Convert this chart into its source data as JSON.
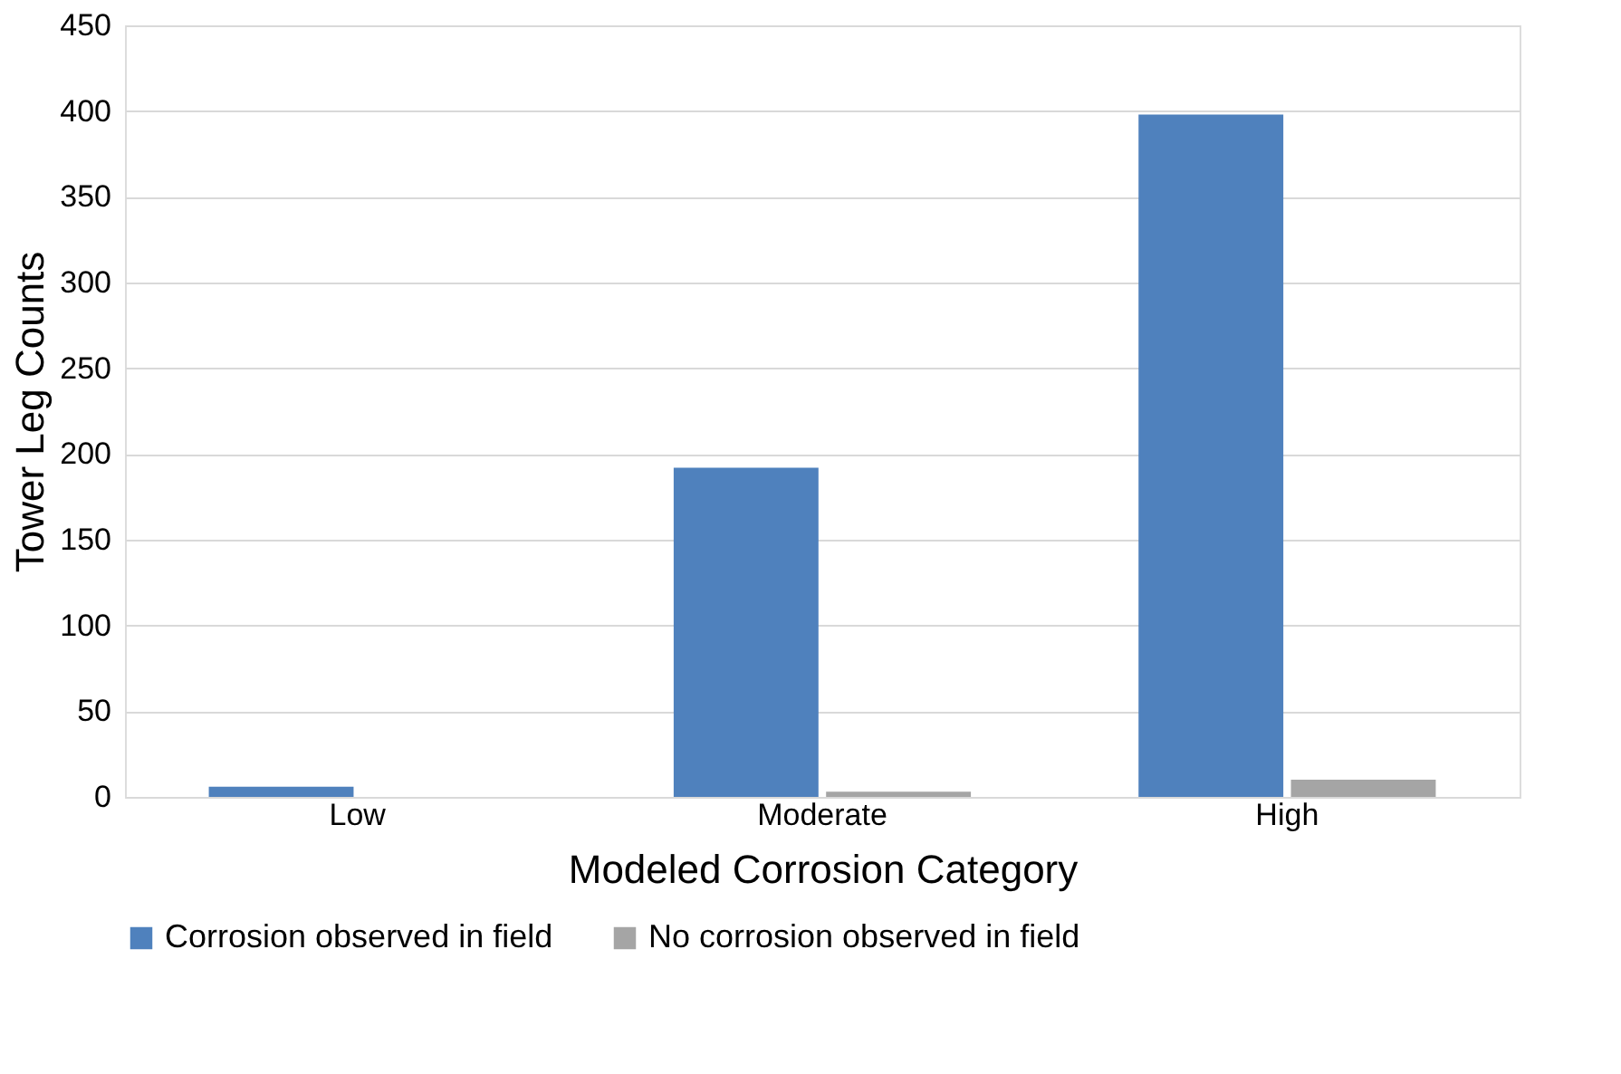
{
  "chart_data": {
    "type": "bar",
    "xlabel": "Modeled Corrosion Category",
    "ylabel": "Tower Leg Counts",
    "categories": [
      "Low",
      "Moderate",
      "High"
    ],
    "series": [
      {
        "name": "Corrosion observed in field",
        "color": "#4f81bd",
        "values": [
          6,
          192,
          398
        ]
      },
      {
        "name": "No corrosion observed in field",
        "color": "#a5a5a5",
        "values": [
          0,
          3,
          10
        ]
      }
    ],
    "ylim": [
      0,
      450
    ],
    "yticks": [
      0,
      50,
      100,
      150,
      200,
      250,
      300,
      350,
      400,
      450
    ],
    "grid": "y",
    "legend": "bottom"
  }
}
